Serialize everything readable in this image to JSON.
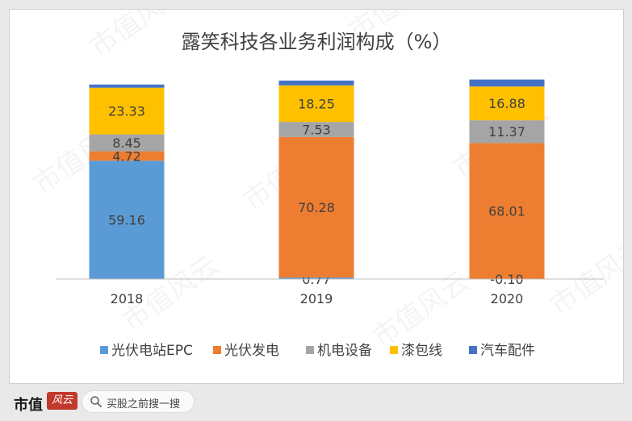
{
  "chart_data": {
    "type": "stacked-bar",
    "title": "露笑科技各业务利润构成（%）",
    "categories": [
      "2018",
      "2019",
      "2020"
    ],
    "series": [
      {
        "name": "光伏电站EPC",
        "color": "#5b9bd5",
        "values": [
          59.16,
          0.77,
          0
        ],
        "labels": [
          "59.16",
          "0.77",
          ""
        ]
      },
      {
        "name": "光伏发电",
        "color": "#ed7d31",
        "values": [
          4.72,
          70.28,
          68.01
        ],
        "labels": [
          "4.72",
          "70.28",
          "68.01"
        ]
      },
      {
        "name": "机电设备",
        "color": "#a5a5a5",
        "values": [
          8.45,
          7.53,
          11.37
        ],
        "labels": [
          "8.45",
          "7.53",
          "11.37"
        ]
      },
      {
        "name": "漆包线",
        "color": "#ffc000",
        "values": [
          23.33,
          18.25,
          16.88
        ],
        "labels": [
          "23.33",
          "18.25",
          "16.88"
        ]
      },
      {
        "name": "汽车配件",
        "color": "#4472c4",
        "values": [
          1.6,
          2.4,
          3.5
        ],
        "labels": [
          "",
          "",
          ""
        ]
      }
    ],
    "extra_labels": [
      {
        "category_index": 2,
        "text": "-0.10"
      }
    ],
    "ylim": [
      0,
      100
    ],
    "legend": "bottom",
    "grid": false
  },
  "watermark": "市值风云",
  "footer": {
    "brand": "市值",
    "brand_logo": "风云",
    "search_placeholder": "买股之前搜一搜"
  }
}
